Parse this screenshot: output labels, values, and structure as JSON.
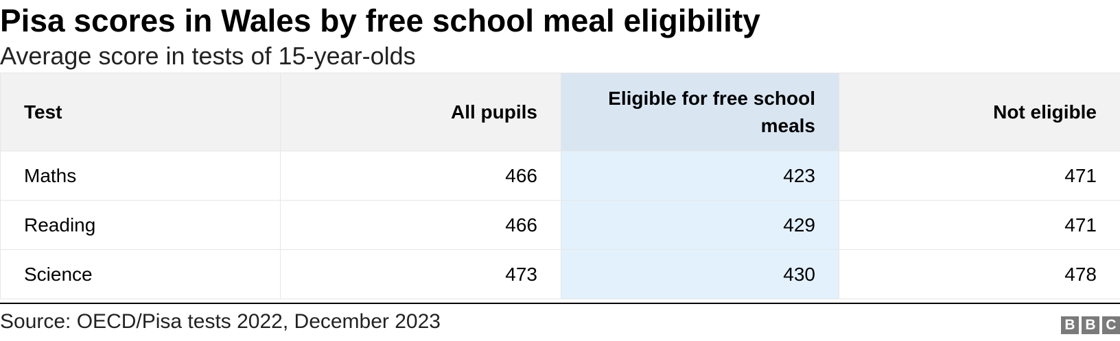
{
  "title": "Pisa scores in Wales by free school meal eligibility",
  "subtitle": "Average score in tests of 15-year-olds",
  "colors": {
    "header_bg": "#f2f2f2",
    "highlight_header_bg": "#d9e6f2",
    "highlight_cell_bg": "#e3f1fd",
    "border": "#e6e6e6",
    "logo_bg": "#7a7a7a"
  },
  "chart_data": {
    "type": "table",
    "columns": [
      "Test",
      "All pupils",
      "Eligible for free school meals",
      "Not eligible"
    ],
    "highlighted_column": "Eligible for free school meals",
    "rows": [
      [
        "Maths",
        466,
        423,
        471
      ],
      [
        "Reading",
        466,
        429,
        471
      ],
      [
        "Science",
        473,
        430,
        478
      ]
    ]
  },
  "source": "Source: OECD/Pisa tests 2022, December 2023",
  "logo": {
    "name": "BBC",
    "letters": [
      "B",
      "B",
      "C"
    ]
  }
}
